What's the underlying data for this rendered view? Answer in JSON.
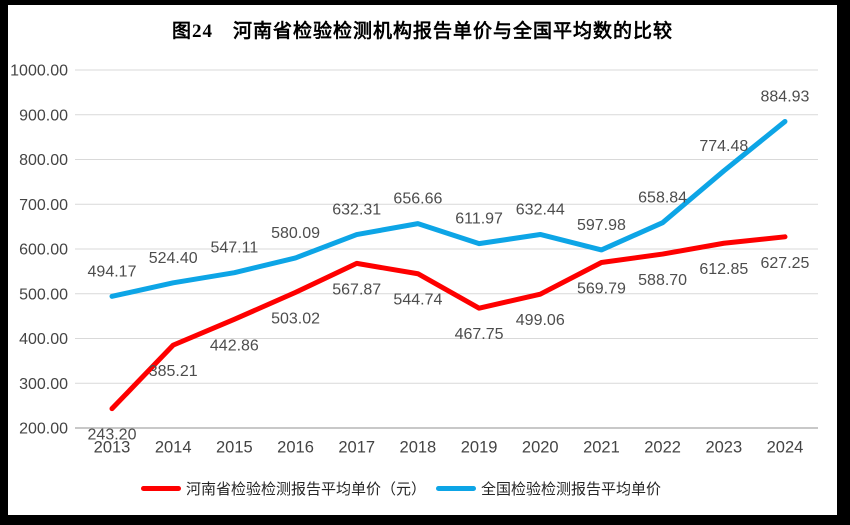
{
  "chart_data": {
    "type": "line",
    "title": "图24　河南省检验检测机构报告单价与全国平均数的比较",
    "categories": [
      "2013",
      "2014",
      "2015",
      "2016",
      "2017",
      "2018",
      "2019",
      "2020",
      "2021",
      "2022",
      "2023",
      "2024"
    ],
    "series": [
      {
        "name": "河南省检验检测报告平均单价（元）",
        "color": "#FE0000",
        "label_position": "below",
        "values": [
          243.2,
          385.21,
          442.86,
          503.02,
          567.87,
          544.74,
          467.75,
          499.06,
          569.79,
          588.7,
          612.85,
          627.25
        ]
      },
      {
        "name": "全国检验检测报告平均单价",
        "color": "#0DA5E6",
        "label_position": "above",
        "values": [
          494.17,
          524.4,
          547.11,
          580.09,
          632.31,
          656.66,
          611.97,
          632.44,
          597.98,
          658.84,
          774.48,
          884.93
        ]
      }
    ],
    "ylim": [
      200,
      1000
    ],
    "ytick_step": 100,
    "ytick_decimals": 2,
    "grid": "horizontal",
    "legend_position": "bottom",
    "colors": {
      "gridline": "#D9D9D9",
      "axis_line": "#A6A6A6",
      "tick_text": "#444444",
      "data_label_text": "#4d4d4d",
      "plot_background": "#FFFFFF",
      "frame_border": "#000000"
    }
  }
}
